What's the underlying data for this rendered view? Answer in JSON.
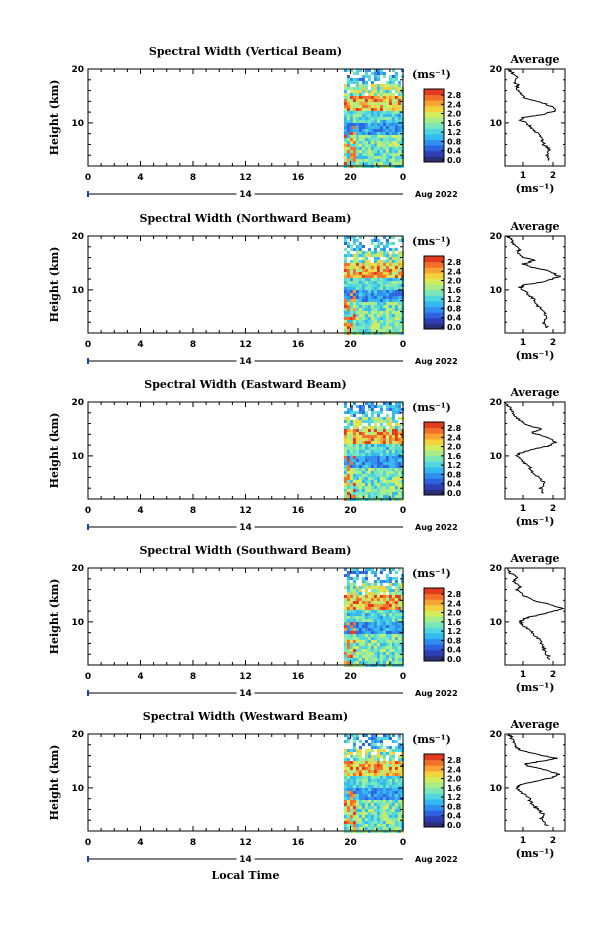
{
  "figure": {
    "xlabel": "Local Time",
    "date_label": "Aug 2022",
    "day_label": "14",
    "unit_label": "(ms⁻¹)",
    "avg_title": "Average",
    "avg_xlabel": "(ms⁻¹)",
    "colorbar_ticks": [
      "2.8",
      "2.4",
      "2.0",
      "1.6",
      "1.2",
      "0.8",
      "0.4",
      "0.0"
    ],
    "colormap": [
      "#2b2f7a",
      "#2e3fb3",
      "#2f62e0",
      "#2f8fef",
      "#33b9f0",
      "#4fd6df",
      "#7be6b8",
      "#a7ee8a",
      "#d2ec5c",
      "#f3d23e",
      "#f7a433",
      "#f2702a",
      "#e33b22"
    ]
  },
  "chart_data": [
    {
      "type": "heatmap",
      "title": "Spectral Width (Vertical Beam)",
      "ylabel": "Height (km)",
      "xlim": [
        0,
        24
      ],
      "ylim": [
        2,
        20
      ],
      "x_ticks": [
        "0",
        "4",
        "8",
        "12",
        "16",
        "20",
        "0"
      ],
      "y_ticks": [
        "10",
        "20"
      ],
      "data_x_range": [
        19.5,
        24
      ],
      "average": {
        "xlim": [
          0.4,
          2.4
        ],
        "x_ticks": [
          "1",
          "2"
        ],
        "y_ticks": [
          "10",
          "20"
        ],
        "profile": [
          [
            1.9,
            3
          ],
          [
            1.8,
            4
          ],
          [
            1.9,
            5
          ],
          [
            1.7,
            6
          ],
          [
            1.6,
            7
          ],
          [
            1.5,
            8
          ],
          [
            1.3,
            9
          ],
          [
            1.1,
            10
          ],
          [
            0.9,
            10.5
          ],
          [
            1.0,
            11
          ],
          [
            1.6,
            11.5
          ],
          [
            2.1,
            12.3
          ],
          [
            2.0,
            13
          ],
          [
            1.6,
            13.8
          ],
          [
            1.1,
            14.5
          ],
          [
            0.9,
            15.5
          ],
          [
            0.8,
            16.5
          ],
          [
            0.85,
            17
          ],
          [
            0.7,
            17.5
          ],
          [
            0.8,
            18.5
          ],
          [
            0.6,
            19.5
          ],
          [
            0.5,
            20
          ]
        ]
      }
    },
    {
      "type": "heatmap",
      "title": "Spectral Width (Northward Beam)",
      "ylabel": "Height (km)",
      "xlim": [
        0,
        24
      ],
      "ylim": [
        2,
        20
      ],
      "x_ticks": [
        "0",
        "4",
        "8",
        "12",
        "16",
        "20",
        "0"
      ],
      "y_ticks": [
        "10",
        "20"
      ],
      "data_x_range": [
        19.5,
        24
      ],
      "average": {
        "xlim": [
          0.4,
          2.4
        ],
        "x_ticks": [
          "1",
          "2"
        ],
        "y_ticks": [
          "10",
          "20"
        ],
        "profile": [
          [
            1.8,
            3
          ],
          [
            1.7,
            4
          ],
          [
            1.8,
            5
          ],
          [
            1.7,
            6
          ],
          [
            1.5,
            7
          ],
          [
            1.4,
            8
          ],
          [
            1.2,
            9
          ],
          [
            1.0,
            10
          ],
          [
            0.9,
            10.5
          ],
          [
            1.1,
            11
          ],
          [
            1.7,
            11.5
          ],
          [
            2.2,
            12.5
          ],
          [
            1.9,
            13.5
          ],
          [
            1.3,
            14.2
          ],
          [
            1.0,
            14.8
          ],
          [
            1.4,
            15.5
          ],
          [
            1.0,
            16
          ],
          [
            0.8,
            17
          ],
          [
            0.9,
            17.5
          ],
          [
            0.7,
            18.5
          ],
          [
            0.6,
            19.5
          ],
          [
            0.5,
            20
          ]
        ]
      }
    },
    {
      "type": "heatmap",
      "title": "Spectral Width (Eastward Beam)",
      "ylabel": "Height (km)",
      "xlim": [
        0,
        24
      ],
      "ylim": [
        2,
        20
      ],
      "x_ticks": [
        "0",
        "4",
        "8",
        "12",
        "16",
        "20",
        "0"
      ],
      "y_ticks": [
        "10",
        "20"
      ],
      "data_x_range": [
        19.5,
        24
      ],
      "average": {
        "xlim": [
          0.4,
          2.4
        ],
        "x_ticks": [
          "1",
          "2"
        ],
        "y_ticks": [
          "10",
          "20"
        ],
        "profile": [
          [
            1.7,
            3
          ],
          [
            1.6,
            4
          ],
          [
            1.7,
            5
          ],
          [
            1.5,
            6
          ],
          [
            1.3,
            7
          ],
          [
            1.2,
            8
          ],
          [
            1.0,
            9
          ],
          [
            0.8,
            10
          ],
          [
            0.9,
            10.5
          ],
          [
            1.2,
            11
          ],
          [
            1.8,
            11.8
          ],
          [
            2.1,
            12.5
          ],
          [
            1.8,
            13.5
          ],
          [
            1.3,
            14.3
          ],
          [
            1.6,
            15
          ],
          [
            1.1,
            15.8
          ],
          [
            0.9,
            16.5
          ],
          [
            0.7,
            17.5
          ],
          [
            0.6,
            18.5
          ],
          [
            0.5,
            19.5
          ],
          [
            0.4,
            20
          ]
        ]
      }
    },
    {
      "type": "heatmap",
      "title": "Spectral Width (Southward Beam)",
      "ylabel": "Height (km)",
      "xlim": [
        0,
        24
      ],
      "ylim": [
        2,
        20
      ],
      "x_ticks": [
        "0",
        "4",
        "8",
        "12",
        "16",
        "20",
        "0"
      ],
      "y_ticks": [
        "10",
        "20"
      ],
      "data_x_range": [
        19.5,
        24
      ],
      "average": {
        "xlim": [
          0.4,
          2.4
        ],
        "x_ticks": [
          "1",
          "2"
        ],
        "y_ticks": [
          "10",
          "20"
        ],
        "profile": [
          [
            1.9,
            3
          ],
          [
            1.8,
            4
          ],
          [
            1.7,
            5
          ],
          [
            1.6,
            6
          ],
          [
            1.5,
            7
          ],
          [
            1.3,
            8
          ],
          [
            1.1,
            9
          ],
          [
            0.9,
            10
          ],
          [
            1.0,
            10.5
          ],
          [
            1.3,
            11
          ],
          [
            1.9,
            11.8
          ],
          [
            2.3,
            12.5
          ],
          [
            1.9,
            13.3
          ],
          [
            1.3,
            14
          ],
          [
            1.0,
            15
          ],
          [
            0.8,
            16
          ],
          [
            0.9,
            16.5
          ],
          [
            0.7,
            17.5
          ],
          [
            0.8,
            18.2
          ],
          [
            0.6,
            19
          ],
          [
            0.5,
            20
          ]
        ]
      }
    },
    {
      "type": "heatmap",
      "title": "Spectral Width (Westward Beam)",
      "ylabel": "Height (km)",
      "xlim": [
        0,
        24
      ],
      "ylim": [
        2,
        20
      ],
      "x_ticks": [
        "0",
        "4",
        "8",
        "12",
        "16",
        "20",
        "0"
      ],
      "y_ticks": [
        "10",
        "20"
      ],
      "data_x_range": [
        19.5,
        24
      ],
      "average": {
        "xlim": [
          0.4,
          2.4
        ],
        "x_ticks": [
          "1",
          "2"
        ],
        "y_ticks": [
          "10",
          "20"
        ],
        "profile": [
          [
            1.8,
            3
          ],
          [
            1.6,
            4
          ],
          [
            1.7,
            5
          ],
          [
            1.5,
            6
          ],
          [
            1.3,
            7
          ],
          [
            1.2,
            8
          ],
          [
            1.0,
            9
          ],
          [
            0.8,
            10
          ],
          [
            0.9,
            10.5
          ],
          [
            1.2,
            11
          ],
          [
            1.9,
            11.8
          ],
          [
            2.2,
            12.5
          ],
          [
            1.8,
            13.3
          ],
          [
            1.2,
            14
          ],
          [
            1.1,
            14.5
          ],
          [
            1.7,
            15
          ],
          [
            2.1,
            15.5
          ],
          [
            1.5,
            16.2
          ],
          [
            0.9,
            17
          ],
          [
            0.8,
            17.5
          ],
          [
            0.7,
            18.5
          ],
          [
            0.6,
            19.5
          ],
          [
            0.5,
            20
          ]
        ]
      }
    }
  ]
}
